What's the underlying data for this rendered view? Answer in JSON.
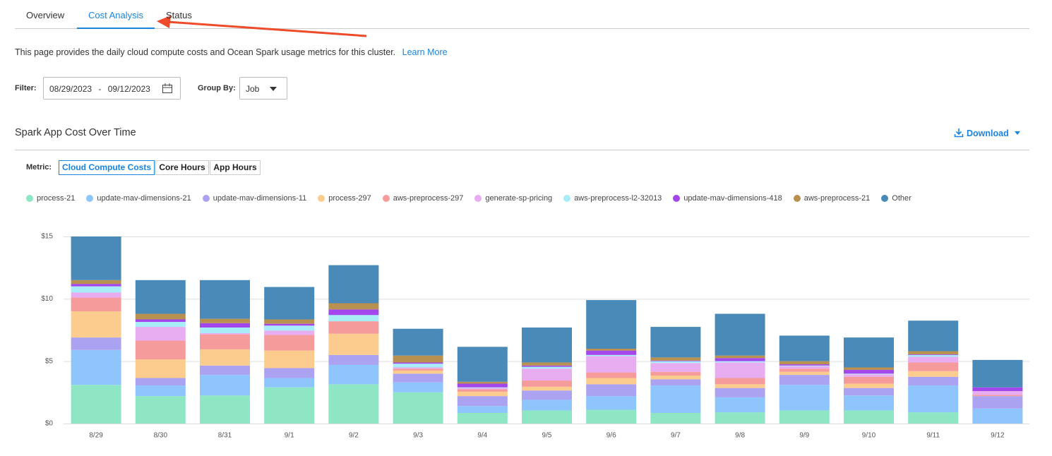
{
  "tabs": [
    "Overview",
    "Cost Analysis",
    "Status"
  ],
  "description": "This page provides the daily cloud compute costs and Ocean Spark usage metrics for this cluster.",
  "learn_more": "Learn More",
  "filter": {
    "label": "Filter:",
    "start": "08/29/2023",
    "separator": "-",
    "end": "09/12/2023"
  },
  "group_by": {
    "label": "Group By:",
    "value": "Job"
  },
  "section_title": "Spark App Cost Over Time",
  "download": "Download",
  "metric": {
    "label": "Metric:",
    "options": [
      "Cloud Compute Costs",
      "Core Hours",
      "App Hours"
    ]
  },
  "chart_data": {
    "type": "stacked_bar",
    "categories": [
      "8/29",
      "8/30",
      "8/31",
      "9/1",
      "9/2",
      "9/3",
      "9/4",
      "9/5",
      "9/6",
      "9/7",
      "9/8",
      "9/9",
      "9/10",
      "9/11",
      "9/12"
    ],
    "ylim": [
      0,
      15
    ],
    "yticks": [
      {
        "value": 0,
        "label": "$0"
      },
      {
        "value": 5,
        "label": "$5"
      },
      {
        "value": 10,
        "label": "$10"
      },
      {
        "value": 15,
        "label": "$15"
      }
    ],
    "grid": true,
    "series": [
      {
        "name": "process-21",
        "color": "#8ee6c4",
        "values": [
          3.1,
          2.2,
          2.25,
          2.9,
          3.15,
          2.5,
          0.85,
          1.05,
          1.1,
          0.85,
          0.9,
          1.05,
          1.05,
          0.9,
          0
        ]
      },
      {
        "name": "update-mav-dimensions-21",
        "color": "#8ec5fc",
        "values": [
          2.8,
          0.85,
          1.65,
          0.75,
          1.55,
          0.8,
          0.55,
          0.85,
          1.1,
          2.2,
          1.2,
          2.05,
          1.2,
          2.15,
          1.2
        ]
      },
      {
        "name": "update-mav-dimensions-11",
        "color": "#aba3f2",
        "values": [
          1.0,
          0.6,
          0.75,
          0.8,
          0.8,
          0.7,
          0.8,
          0.75,
          0.95,
          0.5,
          0.75,
          0.8,
          0.6,
          0.7,
          1.0
        ]
      },
      {
        "name": "process-297",
        "color": "#fbcc8d",
        "values": [
          2.1,
          1.5,
          1.3,
          1.4,
          1.7,
          0.25,
          0.35,
          0.3,
          0.5,
          0.3,
          0.3,
          0.25,
          0.35,
          0.45,
          0
        ]
      },
      {
        "name": "aws-preprocess-297",
        "color": "#f69b9b",
        "values": [
          1.1,
          1.5,
          1.2,
          1.25,
          1.0,
          0.15,
          0.2,
          0.5,
          0.45,
          0.3,
          0.5,
          0.25,
          0.55,
          0.7,
          0.1
        ]
      },
      {
        "name": "generate-sp-pricing",
        "color": "#e8acf0",
        "values": [
          0.4,
          1.1,
          0.1,
          0.35,
          0,
          0.1,
          0.1,
          0.95,
          1.3,
          0.7,
          1.25,
          0.2,
          0.2,
          0.45,
          0.3
        ]
      },
      {
        "name": "aws-preprocess-l2-32013",
        "color": "#a8ecf7",
        "values": [
          0.5,
          0.4,
          0.45,
          0.4,
          0.5,
          0.3,
          0.05,
          0.15,
          0.1,
          0.15,
          0.1,
          0.05,
          0.05,
          0.15,
          0
        ]
      },
      {
        "name": "update-mav-dimensions-418",
        "color": "#a347ec",
        "values": [
          0.2,
          0.2,
          0.35,
          0.15,
          0.45,
          0.1,
          0.3,
          0.1,
          0.35,
          0.05,
          0.25,
          0.1,
          0.3,
          0.05,
          0.3
        ]
      },
      {
        "name": "aws-preprocess-21",
        "color": "#b89050",
        "values": [
          0.3,
          0.45,
          0.35,
          0.35,
          0.5,
          0.55,
          0.15,
          0.25,
          0.15,
          0.25,
          0.2,
          0.25,
          0.2,
          0.25,
          0
        ]
      },
      {
        "name": "Other",
        "color": "#4a8ab8",
        "values": [
          3.5,
          2.7,
          3.1,
          2.6,
          3.05,
          2.15,
          2.8,
          2.8,
          3.9,
          2.45,
          3.35,
          2.05,
          2.4,
          2.45,
          2.2
        ]
      }
    ]
  }
}
